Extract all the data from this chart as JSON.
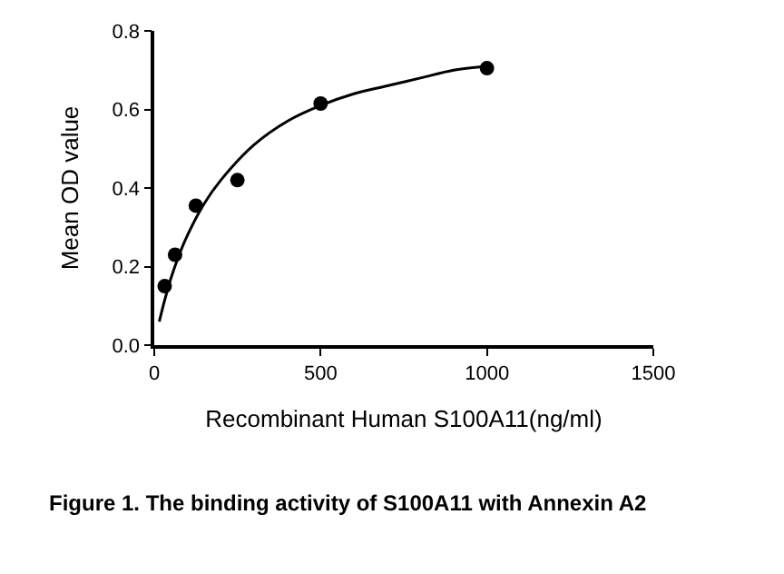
{
  "chart_data": {
    "type": "scatter",
    "xlabel": "Recombinant Human S100A11(ng/ml)",
    "ylabel": "Mean OD value",
    "xlim": [
      0,
      1500
    ],
    "xticks": [
      0,
      500,
      1000,
      1500
    ],
    "ylim": [
      0,
      0.8
    ],
    "yticks": [
      {
        "value": 0,
        "label": "0.0"
      },
      {
        "value": 0.2,
        "label": "0.2"
      },
      {
        "value": 0.4,
        "label": "0.4"
      },
      {
        "value": 0.6,
        "label": "0.6"
      },
      {
        "value": 0.8,
        "label": "0.8"
      }
    ],
    "grid": false,
    "legend": false,
    "series": [
      {
        "color": "#000000",
        "marker": "circle",
        "x": [
          31.25,
          62.5,
          125,
          250,
          500,
          1000
        ],
        "values": [
          0.15,
          0.23,
          0.355,
          0.42,
          0.615,
          0.705
        ]
      },
      {
        "type": "line",
        "color": "#000000",
        "marker": "none",
        "line_style": "solid",
        "x": [
          15,
          30,
          50,
          75,
          100,
          150,
          200,
          300,
          400,
          500,
          600,
          700,
          800,
          900,
          1000
        ],
        "values": [
          0.06,
          0.11,
          0.17,
          0.23,
          0.28,
          0.36,
          0.42,
          0.51,
          0.57,
          0.61,
          0.64,
          0.66,
          0.68,
          0.7,
          0.71
        ]
      }
    ],
    "annotations": [
      "Figure 1. The binding activity of S100A11 with Annexin A2"
    ]
  }
}
